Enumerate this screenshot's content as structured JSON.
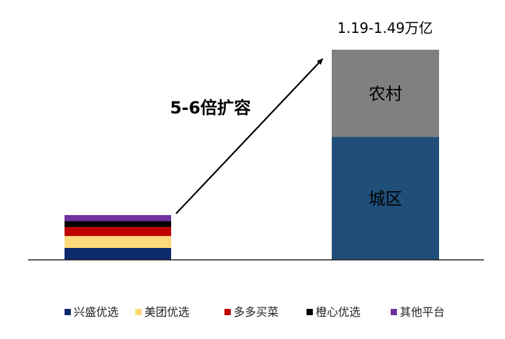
{
  "chart_data": {
    "type": "bar",
    "stacked": true,
    "categories": [
      "",
      ""
    ],
    "series": [
      {
        "name": "兴盛优选",
        "color": "#0a2a6b",
        "values": [
          1,
          null
        ]
      },
      {
        "name": "美团优选",
        "color": "#fbd97a",
        "values": [
          1,
          null
        ]
      },
      {
        "name": "多多买菜",
        "color": "#c00000",
        "values": [
          0.75,
          null
        ]
      },
      {
        "name": "橙心优选",
        "color": "#000000",
        "values": [
          0.5,
          null
        ]
      },
      {
        "name": "其他平台",
        "color": "#7030a0",
        "values": [
          0.5,
          null
        ]
      },
      {
        "segment": "城区",
        "color": "#1f4e79",
        "values": [
          null,
          10.3
        ]
      },
      {
        "segment": "农村",
        "color": "#808080",
        "values": [
          null,
          7.3
        ]
      }
    ],
    "bar_total_label": "1.19-1.49万亿",
    "annotation": "5-6倍扩容",
    "legend_position": "bottom",
    "grid": false
  }
}
